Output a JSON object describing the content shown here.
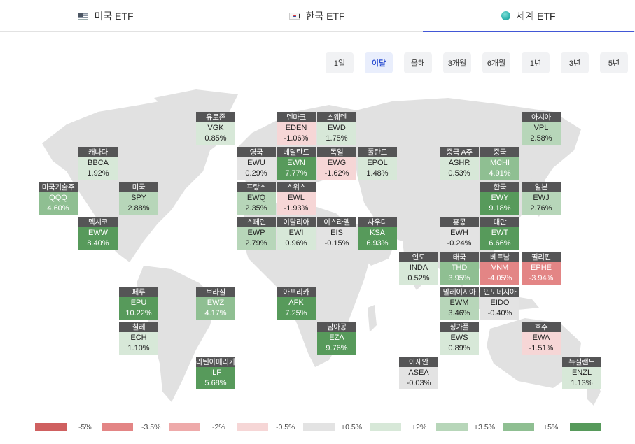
{
  "tabs": [
    {
      "label": "미국 ETF",
      "icon": "us-flag-icon",
      "active": false
    },
    {
      "label": "한국 ETF",
      "icon": "kr-flag-icon",
      "active": false
    },
    {
      "label": "세계 ETF",
      "icon": "globe-icon",
      "active": true
    }
  ],
  "periods": [
    "1일",
    "이달",
    "올해",
    "3개월",
    "6개월",
    "1년",
    "3년",
    "5년"
  ],
  "active_period": "이달",
  "colors": {
    "accent": "#4257d6",
    "neg_strong": "#cf6060",
    "neg_mid": "#e38585",
    "neg_light": "#eeaaaa",
    "neg_faint": "#f6d6d6",
    "neutral": "#e3e3e3",
    "pos_faint": "#d7e8d8",
    "pos_light": "#b7d6b9",
    "pos_mid": "#8fbf92",
    "pos_strong": "#579a5b"
  },
  "etfs": [
    {
      "name": "유로존",
      "ticker": "VGK",
      "change": "0.85%",
      "level": "pos_faint"
    },
    {
      "name": "덴마크",
      "ticker": "EDEN",
      "change": "-1.06%",
      "level": "neg_faint"
    },
    {
      "name": "스웨덴",
      "ticker": "EWD",
      "change": "1.75%",
      "level": "pos_faint"
    },
    {
      "name": "아시아",
      "ticker": "VPL",
      "change": "2.58%",
      "level": "pos_light"
    },
    {
      "name": "캐나다",
      "ticker": "BBCA",
      "change": "1.92%",
      "level": "pos_faint"
    },
    {
      "name": "영국",
      "ticker": "EWU",
      "change": "0.29%",
      "level": "neutral"
    },
    {
      "name": "네덜란드",
      "ticker": "EWN",
      "change": "7.77%",
      "level": "pos_strong"
    },
    {
      "name": "독일",
      "ticker": "EWG",
      "change": "-1.62%",
      "level": "neg_faint"
    },
    {
      "name": "폴란드",
      "ticker": "EPOL",
      "change": "1.48%",
      "level": "pos_faint"
    },
    {
      "name": "중국 A주",
      "ticker": "ASHR",
      "change": "0.53%",
      "level": "pos_faint"
    },
    {
      "name": "중국",
      "ticker": "MCHI",
      "change": "4.91%",
      "level": "pos_mid"
    },
    {
      "name": "미국기술주",
      "ticker": "QQQ",
      "change": "4.60%",
      "level": "pos_mid"
    },
    {
      "name": "미국",
      "ticker": "SPY",
      "change": "2.88%",
      "level": "pos_light"
    },
    {
      "name": "프랑스",
      "ticker": "EWQ",
      "change": "2.35%",
      "level": "pos_light"
    },
    {
      "name": "스위스",
      "ticker": "EWL",
      "change": "-1.93%",
      "level": "neg_faint"
    },
    {
      "name": "한국",
      "ticker": "EWY",
      "change": "9.18%",
      "level": "pos_strong"
    },
    {
      "name": "일본",
      "ticker": "EWJ",
      "change": "2.76%",
      "level": "pos_light"
    },
    {
      "name": "멕시코",
      "ticker": "EWW",
      "change": "8.40%",
      "level": "pos_strong"
    },
    {
      "name": "스페인",
      "ticker": "EWP",
      "change": "2.79%",
      "level": "pos_light"
    },
    {
      "name": "이탈리아",
      "ticker": "EWI",
      "change": "0.96%",
      "level": "pos_faint"
    },
    {
      "name": "이스라엘",
      "ticker": "EIS",
      "change": "-0.15%",
      "level": "neutral"
    },
    {
      "name": "사우디",
      "ticker": "KSA",
      "change": "6.93%",
      "level": "pos_strong"
    },
    {
      "name": "홍콩",
      "ticker": "EWH",
      "change": "-0.24%",
      "level": "neutral"
    },
    {
      "name": "대만",
      "ticker": "EWT",
      "change": "6.66%",
      "level": "pos_strong"
    },
    {
      "name": "인도",
      "ticker": "INDA",
      "change": "0.52%",
      "level": "pos_faint"
    },
    {
      "name": "태국",
      "ticker": "THD",
      "change": "3.95%",
      "level": "pos_mid"
    },
    {
      "name": "베트남",
      "ticker": "VNM",
      "change": "-4.05%",
      "level": "neg_mid"
    },
    {
      "name": "필리핀",
      "ticker": "EPHE",
      "change": "-3.94%",
      "level": "neg_mid"
    },
    {
      "name": "페루",
      "ticker": "EPU",
      "change": "10.22%",
      "level": "pos_strong"
    },
    {
      "name": "브라질",
      "ticker": "EWZ",
      "change": "4.17%",
      "level": "pos_mid"
    },
    {
      "name": "아프리카",
      "ticker": "AFK",
      "change": "7.25%",
      "level": "pos_strong"
    },
    {
      "name": "말레이시아",
      "ticker": "EWM",
      "change": "3.46%",
      "level": "pos_light"
    },
    {
      "name": "인도네시아",
      "ticker": "EIDO",
      "change": "-0.40%",
      "level": "neutral"
    },
    {
      "name": "칠레",
      "ticker": "ECH",
      "change": "1.10%",
      "level": "pos_faint"
    },
    {
      "name": "남아공",
      "ticker": "EZA",
      "change": "9.76%",
      "level": "pos_strong"
    },
    {
      "name": "싱가폴",
      "ticker": "EWS",
      "change": "0.89%",
      "level": "pos_faint"
    },
    {
      "name": "호주",
      "ticker": "EWA",
      "change": "-1.51%",
      "level": "neg_faint"
    },
    {
      "name": "라틴아메리카",
      "ticker": "ILF",
      "change": "5.68%",
      "level": "pos_strong"
    },
    {
      "name": "아세안",
      "ticker": "ASEA",
      "change": "-0.03%",
      "level": "neutral"
    },
    {
      "name": "뉴질랜드",
      "ticker": "ENZL",
      "change": "1.13%",
      "level": "pos_faint"
    }
  ],
  "legend": [
    {
      "color": "#cf6060",
      "label": "-5%"
    },
    {
      "color": "#e38585",
      "label": "-3.5%"
    },
    {
      "color": "#eeaaaa",
      "label": "-2%"
    },
    {
      "color": "#f6d6d6",
      "label": "-0.5%"
    },
    {
      "color": "#e3e3e3",
      "label": "+0.5%"
    },
    {
      "color": "#d7e8d8",
      "label": "+2%"
    },
    {
      "color": "#b7d6b9",
      "label": "+3.5%"
    },
    {
      "color": "#8fbf92",
      "label": "+5%"
    },
    {
      "color": "#579a5b",
      "label": ""
    }
  ]
}
